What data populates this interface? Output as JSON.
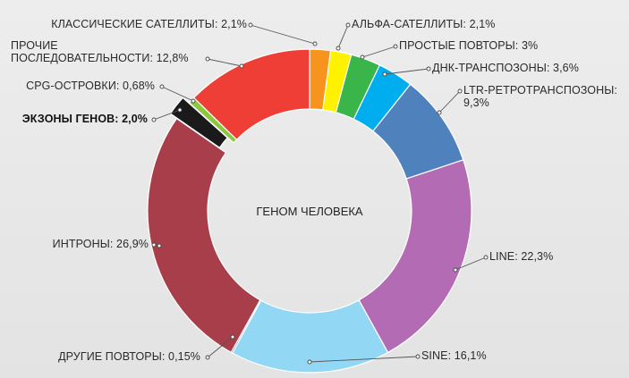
{
  "chart_data": {
    "type": "pie",
    "style": "donut",
    "center_label": "ГЕНОМ ЧЕЛОВЕКА",
    "slices": [
      {
        "label": "КЛАССИЧЕСКИЕ САТЕЛЛИТЫ: 2,1%",
        "value": 2.1,
        "color": "#f7941d",
        "bold": false
      },
      {
        "label": "АЛЬФА-САТЕЛЛИТЫ: 2,1%",
        "value": 2.1,
        "color": "#fff200",
        "bold": false
      },
      {
        "label": "ПРОСТЫЕ ПОВТОРЫ: 3%",
        "value": 3.0,
        "color": "#39b54a",
        "bold": false
      },
      {
        "label": "ДНК-ТРАНСПОЗОНЫ: 3,6%",
        "value": 3.6,
        "color": "#00aeef",
        "bold": false
      },
      {
        "label": [
          "LTR-РЕТРОТРАНСПОЗОНЫ:",
          "9,3%"
        ],
        "value": 9.3,
        "color": "#4f81bd",
        "bold": false
      },
      {
        "label": "LINE: 22,3%",
        "value": 22.3,
        "color": "#b36bb3",
        "bold": false
      },
      {
        "label": "SINE: 16,1%",
        "value": 16.1,
        "color": "#92d8f5",
        "bold": false
      },
      {
        "label": "ДРУГИЕ ПОВТОРЫ: 0,15%",
        "value": 0.15,
        "color": "#2c4a8a",
        "bold": false
      },
      {
        "label": "ИНТРОНЫ: 26,9%",
        "value": 26.9,
        "color": "#a83e4a",
        "bold": false
      },
      {
        "label": "ЭКЗОНЫ ГЕНОВ: 2,0%",
        "value": 2.0,
        "color": "#1a1a1a",
        "bold": true
      },
      {
        "label": "CPG-ОСТРОВКИ: 0,68%",
        "value": 0.68,
        "color": "#8dc63f",
        "bold": false
      },
      {
        "label": [
          "ПРОЧИЕ",
          "ПОСЛЕДОВАТЕЛЬНОСТИ: 12,8%"
        ],
        "value": 12.8,
        "color": "#ef3e36",
        "bold": false
      }
    ],
    "exploded_slice": "ЭКЗОНЫ ГЕНОВ: 2,0%"
  }
}
